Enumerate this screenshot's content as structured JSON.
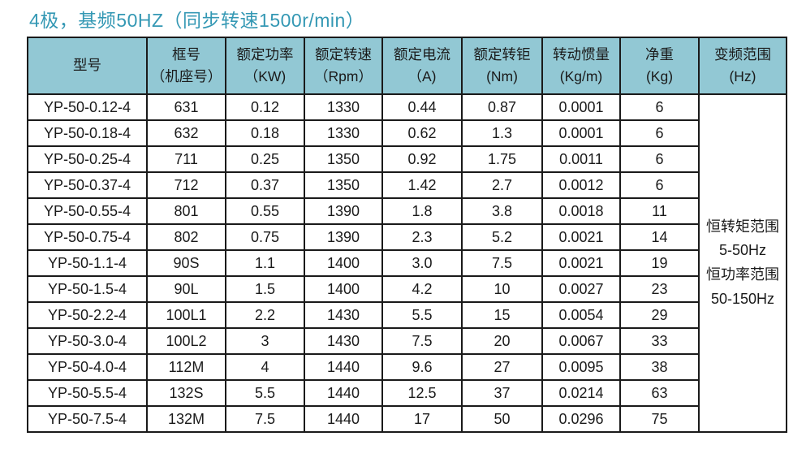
{
  "title": "4极，基频50HZ（同步转速1500r/min）",
  "colors": {
    "title_text": "#3498b4",
    "header_bg": "#92c8d4",
    "border": "#1a1a1a",
    "cell_text": "#1a1a1a"
  },
  "table": {
    "headers": [
      {
        "line1": "型号",
        "line2": ""
      },
      {
        "line1": "框号",
        "line2": "（机座号）"
      },
      {
        "line1": "额定功率",
        "line2": "（KW)"
      },
      {
        "line1": "额定转速",
        "line2": "（Rpm）"
      },
      {
        "line1": "额定电流",
        "line2": "（A)"
      },
      {
        "line1": "额定转钜",
        "line2": "(Nm)"
      },
      {
        "line1": "转动惯量",
        "line2": "(Kg/m)"
      },
      {
        "line1": "净重",
        "line2": "(Kg)"
      },
      {
        "line1": "变频范围",
        "line2": "(Hz)"
      }
    ],
    "rows": [
      [
        "YP-50-0.12-4",
        "631",
        "0.12",
        "1330",
        "0.44",
        "0.87",
        "0.0001",
        "6"
      ],
      [
        "YP-50-0.18-4",
        "632",
        "0.18",
        "1330",
        "0.62",
        "1.3",
        "0.0001",
        "6"
      ],
      [
        "YP-50-0.25-4",
        "711",
        "0.25",
        "1350",
        "0.92",
        "1.75",
        "0.0011",
        "6"
      ],
      [
        "YP-50-0.37-4",
        "712",
        "0.37",
        "1350",
        "1.42",
        "2.7",
        "0.0012",
        "6"
      ],
      [
        "YP-50-0.55-4",
        "801",
        "0.55",
        "1390",
        "1.8",
        "3.8",
        "0.0018",
        "11"
      ],
      [
        "YP-50-0.75-4",
        "802",
        "0.75",
        "1390",
        "2.3",
        "5.2",
        "0.0021",
        "14"
      ],
      [
        "YP-50-1.1-4",
        "90S",
        "1.1",
        "1400",
        "3.0",
        "7.5",
        "0.0021",
        "19"
      ],
      [
        "YP-50-1.5-4",
        "90L",
        "1.5",
        "1400",
        "4.2",
        "10",
        "0.0027",
        "23"
      ],
      [
        "YP-50-2.2-4",
        "100L1",
        "2.2",
        "1430",
        "5.5",
        "15",
        "0.0054",
        "29"
      ],
      [
        "YP-50-3.0-4",
        "100L2",
        "3",
        "1430",
        "7.5",
        "20",
        "0.0067",
        "33"
      ],
      [
        "YP-50-4.0-4",
        "112M",
        "4",
        "1440",
        "9.6",
        "27",
        "0.0095",
        "38"
      ],
      [
        "YP-50-5.5-4",
        "132S",
        "5.5",
        "1440",
        "12.5",
        "37",
        "0.0214",
        "63"
      ],
      [
        "YP-50-7.5-4",
        "132M",
        "7.5",
        "1440",
        "17",
        "50",
        "0.0296",
        "75"
      ]
    ],
    "frequency_range_lines": [
      "恒转矩范围",
      "5-50Hz",
      "恒功率范围",
      "50-150Hz"
    ]
  }
}
